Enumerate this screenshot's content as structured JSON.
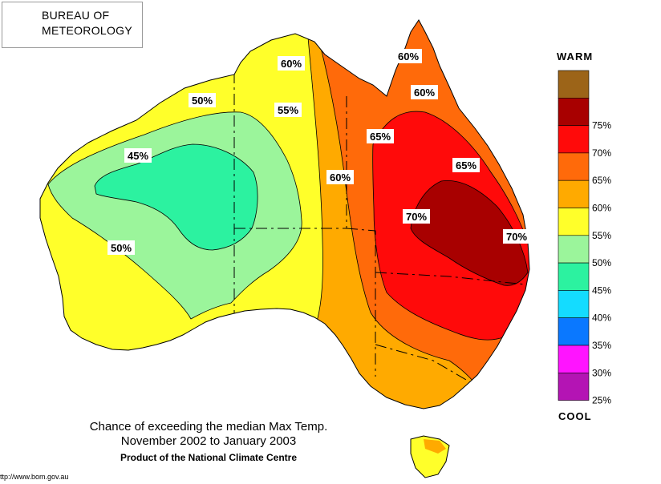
{
  "logo": {
    "line1": "BUREAU OF",
    "line2": "METEOROLOGY"
  },
  "legend": {
    "warm_label": "WARM",
    "cool_label": "COOL",
    "bands": [
      {
        "color": "#9c6418",
        "label": ""
      },
      {
        "color": "#a80000",
        "label": "75%"
      },
      {
        "color": "#ff0a0a",
        "label": "70%"
      },
      {
        "color": "#ff6a0a",
        "label": "65%"
      },
      {
        "color": "#ffaa00",
        "label": "60%"
      },
      {
        "color": "#ffff2a",
        "label": "55%"
      },
      {
        "color": "#9bf59b",
        "label": "50%"
      },
      {
        "color": "#2cf2a0",
        "label": "45%"
      },
      {
        "color": "#14dcff",
        "label": "40%"
      },
      {
        "color": "#0a78ff",
        "label": "35%"
      },
      {
        "color": "#ff14ff",
        "label": "30%"
      },
      {
        "color": "#b414b4",
        "label": "25%"
      }
    ]
  },
  "contour_labels": [
    {
      "text": "60%"
    },
    {
      "text": "60%"
    },
    {
      "text": "60%"
    },
    {
      "text": "50%"
    },
    {
      "text": "55%"
    },
    {
      "text": "65%"
    },
    {
      "text": "45%"
    },
    {
      "text": "65%"
    },
    {
      "text": "60%"
    },
    {
      "text": "70%"
    },
    {
      "text": "70%"
    },
    {
      "text": "50%"
    }
  ],
  "caption": {
    "line1": "Chance of exceeding the median Max Temp.",
    "line2": "November 2002 to January 2003",
    "line3": "Product of the National Climate Centre"
  },
  "url_text": "ttp://www.bom.gov.au"
}
